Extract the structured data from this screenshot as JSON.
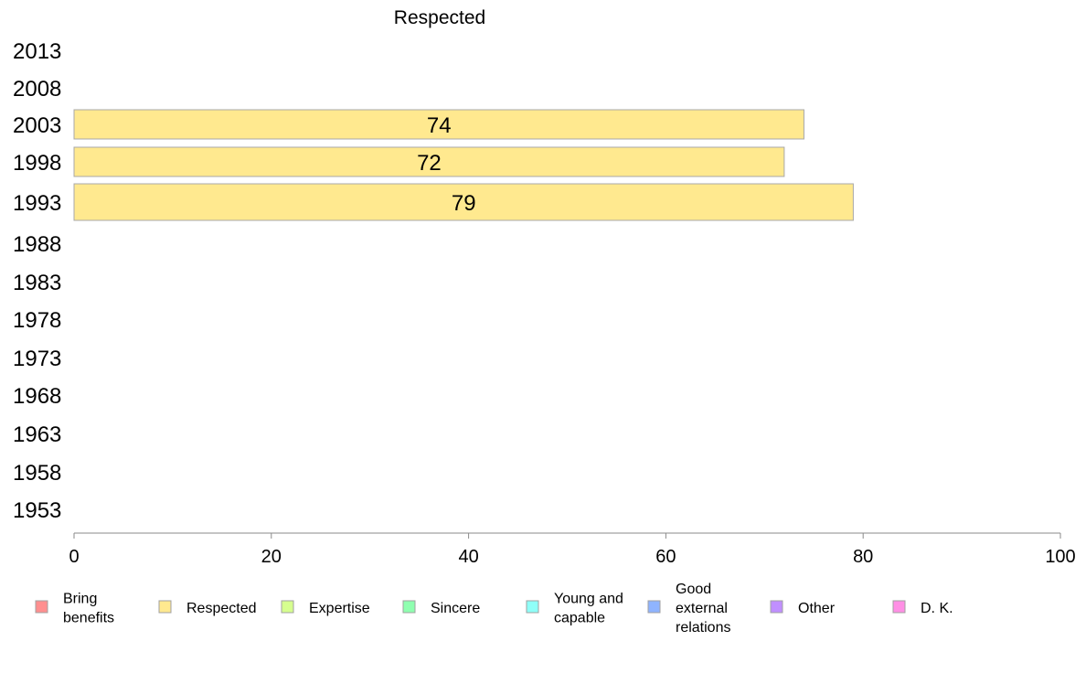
{
  "chart_data": {
    "type": "bar",
    "orientation": "horizontal",
    "title": "Respected",
    "categories": [
      "2013",
      "2008",
      "2003",
      "1998",
      "1993",
      "1988",
      "1983",
      "1978",
      "1973",
      "1968",
      "1963",
      "1958",
      "1953"
    ],
    "series": [
      {
        "name": "Respected",
        "color": "#ffe98f",
        "values": [
          null,
          null,
          74,
          72,
          79,
          null,
          null,
          null,
          null,
          null,
          null,
          null,
          null
        ],
        "labels": [
          "",
          "",
          "74",
          "72",
          "79",
          "",
          "",
          "",
          "",
          "",
          "",
          "",
          ""
        ]
      }
    ],
    "xlim": [
      0,
      100
    ],
    "xticks": [
      0,
      20,
      40,
      60,
      80,
      100
    ],
    "xtick_labels": [
      "0",
      "20",
      "40",
      "60",
      "80",
      "100"
    ],
    "grid": false,
    "legend_position": "bottom",
    "legend": [
      {
        "lines": [
          "Bring",
          "benefits"
        ],
        "color": "#ff8f8f"
      },
      {
        "lines": [
          "Respected"
        ],
        "color": "#ffe98f"
      },
      {
        "lines": [
          "Expertise"
        ],
        "color": "#d6ff8f"
      },
      {
        "lines": [
          "Sincere"
        ],
        "color": "#8fffb0"
      },
      {
        "lines": [
          "Young and",
          "capable"
        ],
        "color": "#8ffff8"
      },
      {
        "lines": [
          "Good",
          "external",
          "relations"
        ],
        "color": "#8fb4ff"
      },
      {
        "lines": [
          "Other"
        ],
        "color": "#c08fff"
      },
      {
        "lines": [
          "D. K."
        ],
        "color": "#ff8fe5"
      }
    ]
  }
}
